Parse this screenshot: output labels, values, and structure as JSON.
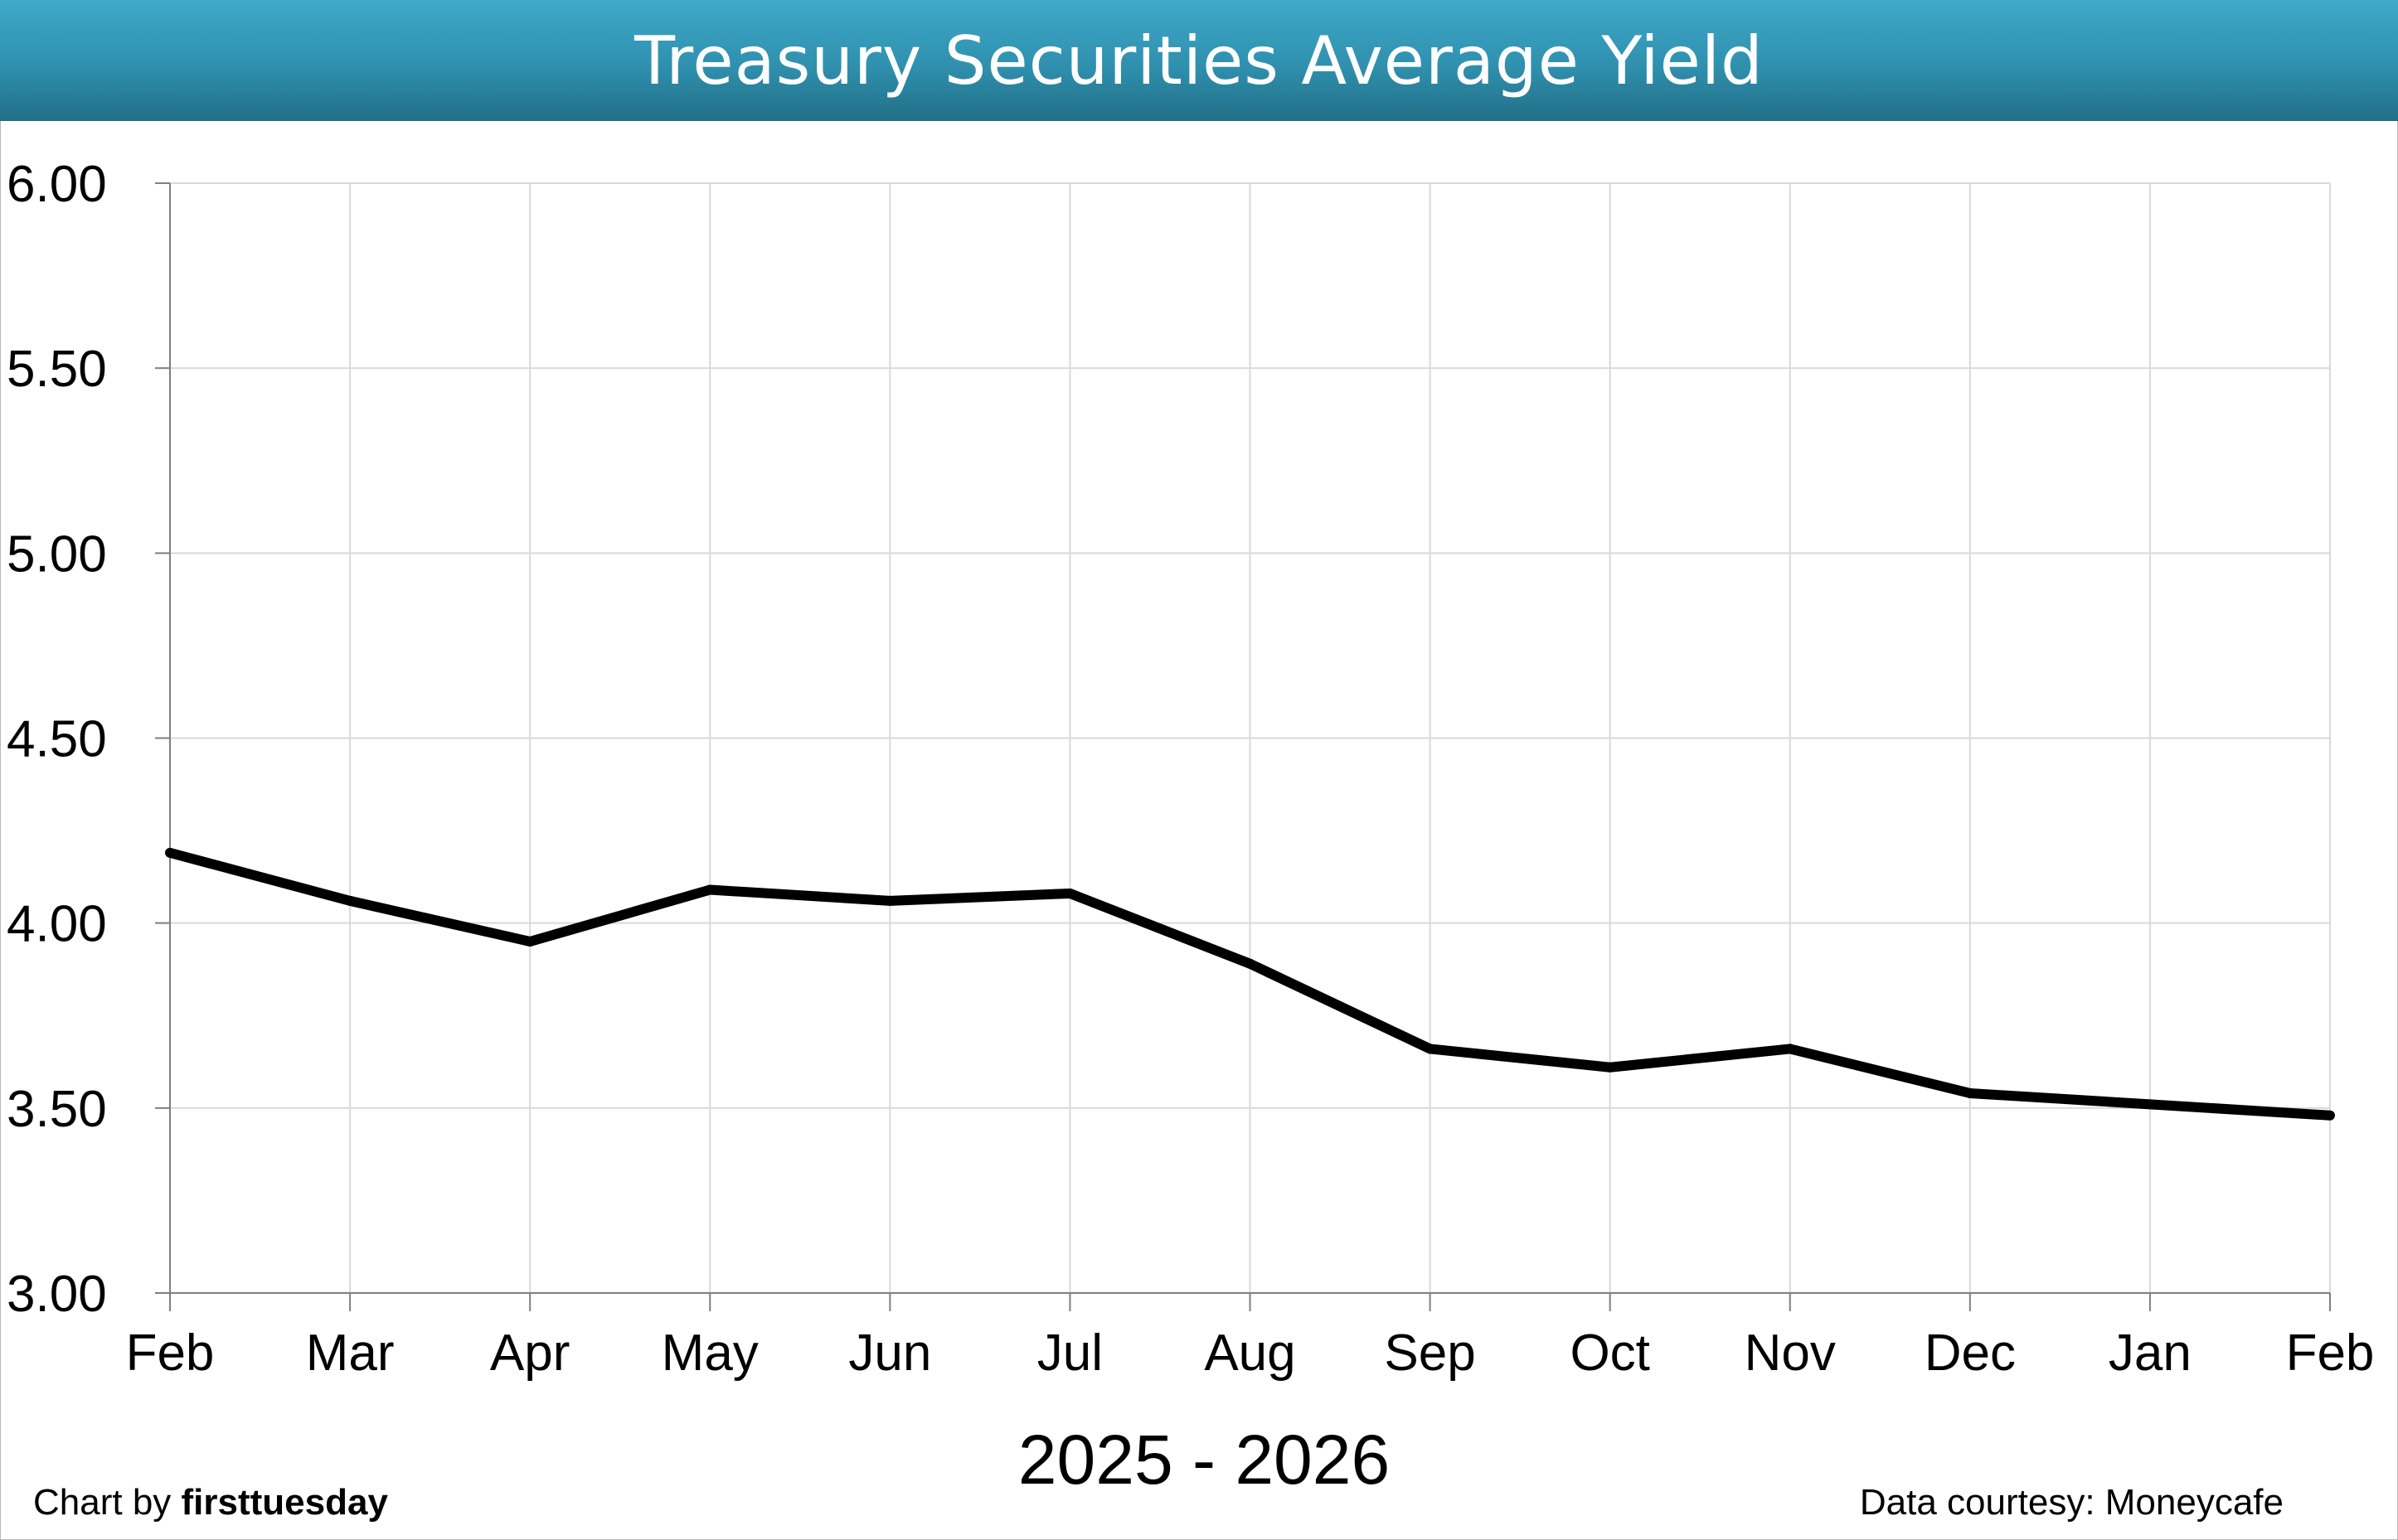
{
  "header": {
    "title": "Treasury Securities Average Yield"
  },
  "footer": {
    "credit_prefix": "Chart by",
    "credit_brand": "firsttuesday",
    "source": "Data courtesy: Moneycafe"
  },
  "colors": {
    "header_top": "#3fa9c9",
    "header_bottom": "#226f86",
    "line": "#000000",
    "grid": "#d9d9d9"
  },
  "chart_data": {
    "type": "line",
    "title": "Treasury Securities Average Yield",
    "xlabel": "2025 - 2026",
    "ylabel": "",
    "categories": [
      "Feb",
      "Mar",
      "Apr",
      "May",
      "Jun",
      "Jul",
      "Aug",
      "Sep",
      "Oct",
      "Nov",
      "Dec",
      "Jan",
      "Feb"
    ],
    "series": [
      {
        "values": [
          4.19,
          4.06,
          3.95,
          4.09,
          4.06,
          4.08,
          3.89,
          3.66,
          3.61,
          3.66,
          3.54,
          3.51,
          3.48
        ]
      }
    ],
    "ylim": [
      3.0,
      6.0
    ],
    "yticks": [
      "3.00",
      "3.50",
      "4.00",
      "4.50",
      "5.00",
      "5.50",
      "6.00"
    ],
    "grid": true,
    "legend": "none"
  }
}
